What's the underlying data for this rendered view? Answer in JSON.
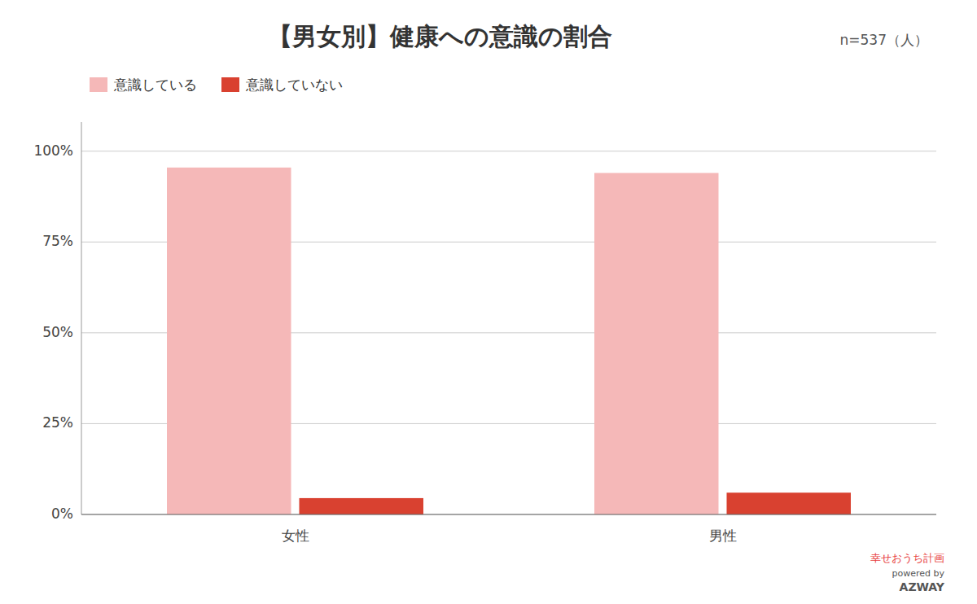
{
  "chart_data": {
    "type": "bar",
    "title": "【男女別】健康への意識の割合",
    "subtitle": "n=537（人）",
    "annotations": [
      "幸せおうち計画",
      "powered by",
      "AZWAY"
    ],
    "categories": [
      "女性",
      "男性"
    ],
    "series": [
      {
        "name": "意識している",
        "color": "#F5B8B8",
        "values": [
          0.955,
          0.94
        ]
      },
      {
        "name": "意識していない",
        "color": "#D94130",
        "values": [
          0.045,
          0.06
        ]
      }
    ],
    "ylim": [
      0,
      1.08
    ],
    "yticks": [
      {
        "value": 0.0,
        "label": "0%"
      },
      {
        "value": 0.25,
        "label": "25%"
      },
      {
        "value": 0.5,
        "label": "50%"
      },
      {
        "value": 0.75,
        "label": "75%"
      },
      {
        "value": 1.0,
        "label": "100%"
      }
    ],
    "grid": true,
    "legend": "upper left"
  }
}
